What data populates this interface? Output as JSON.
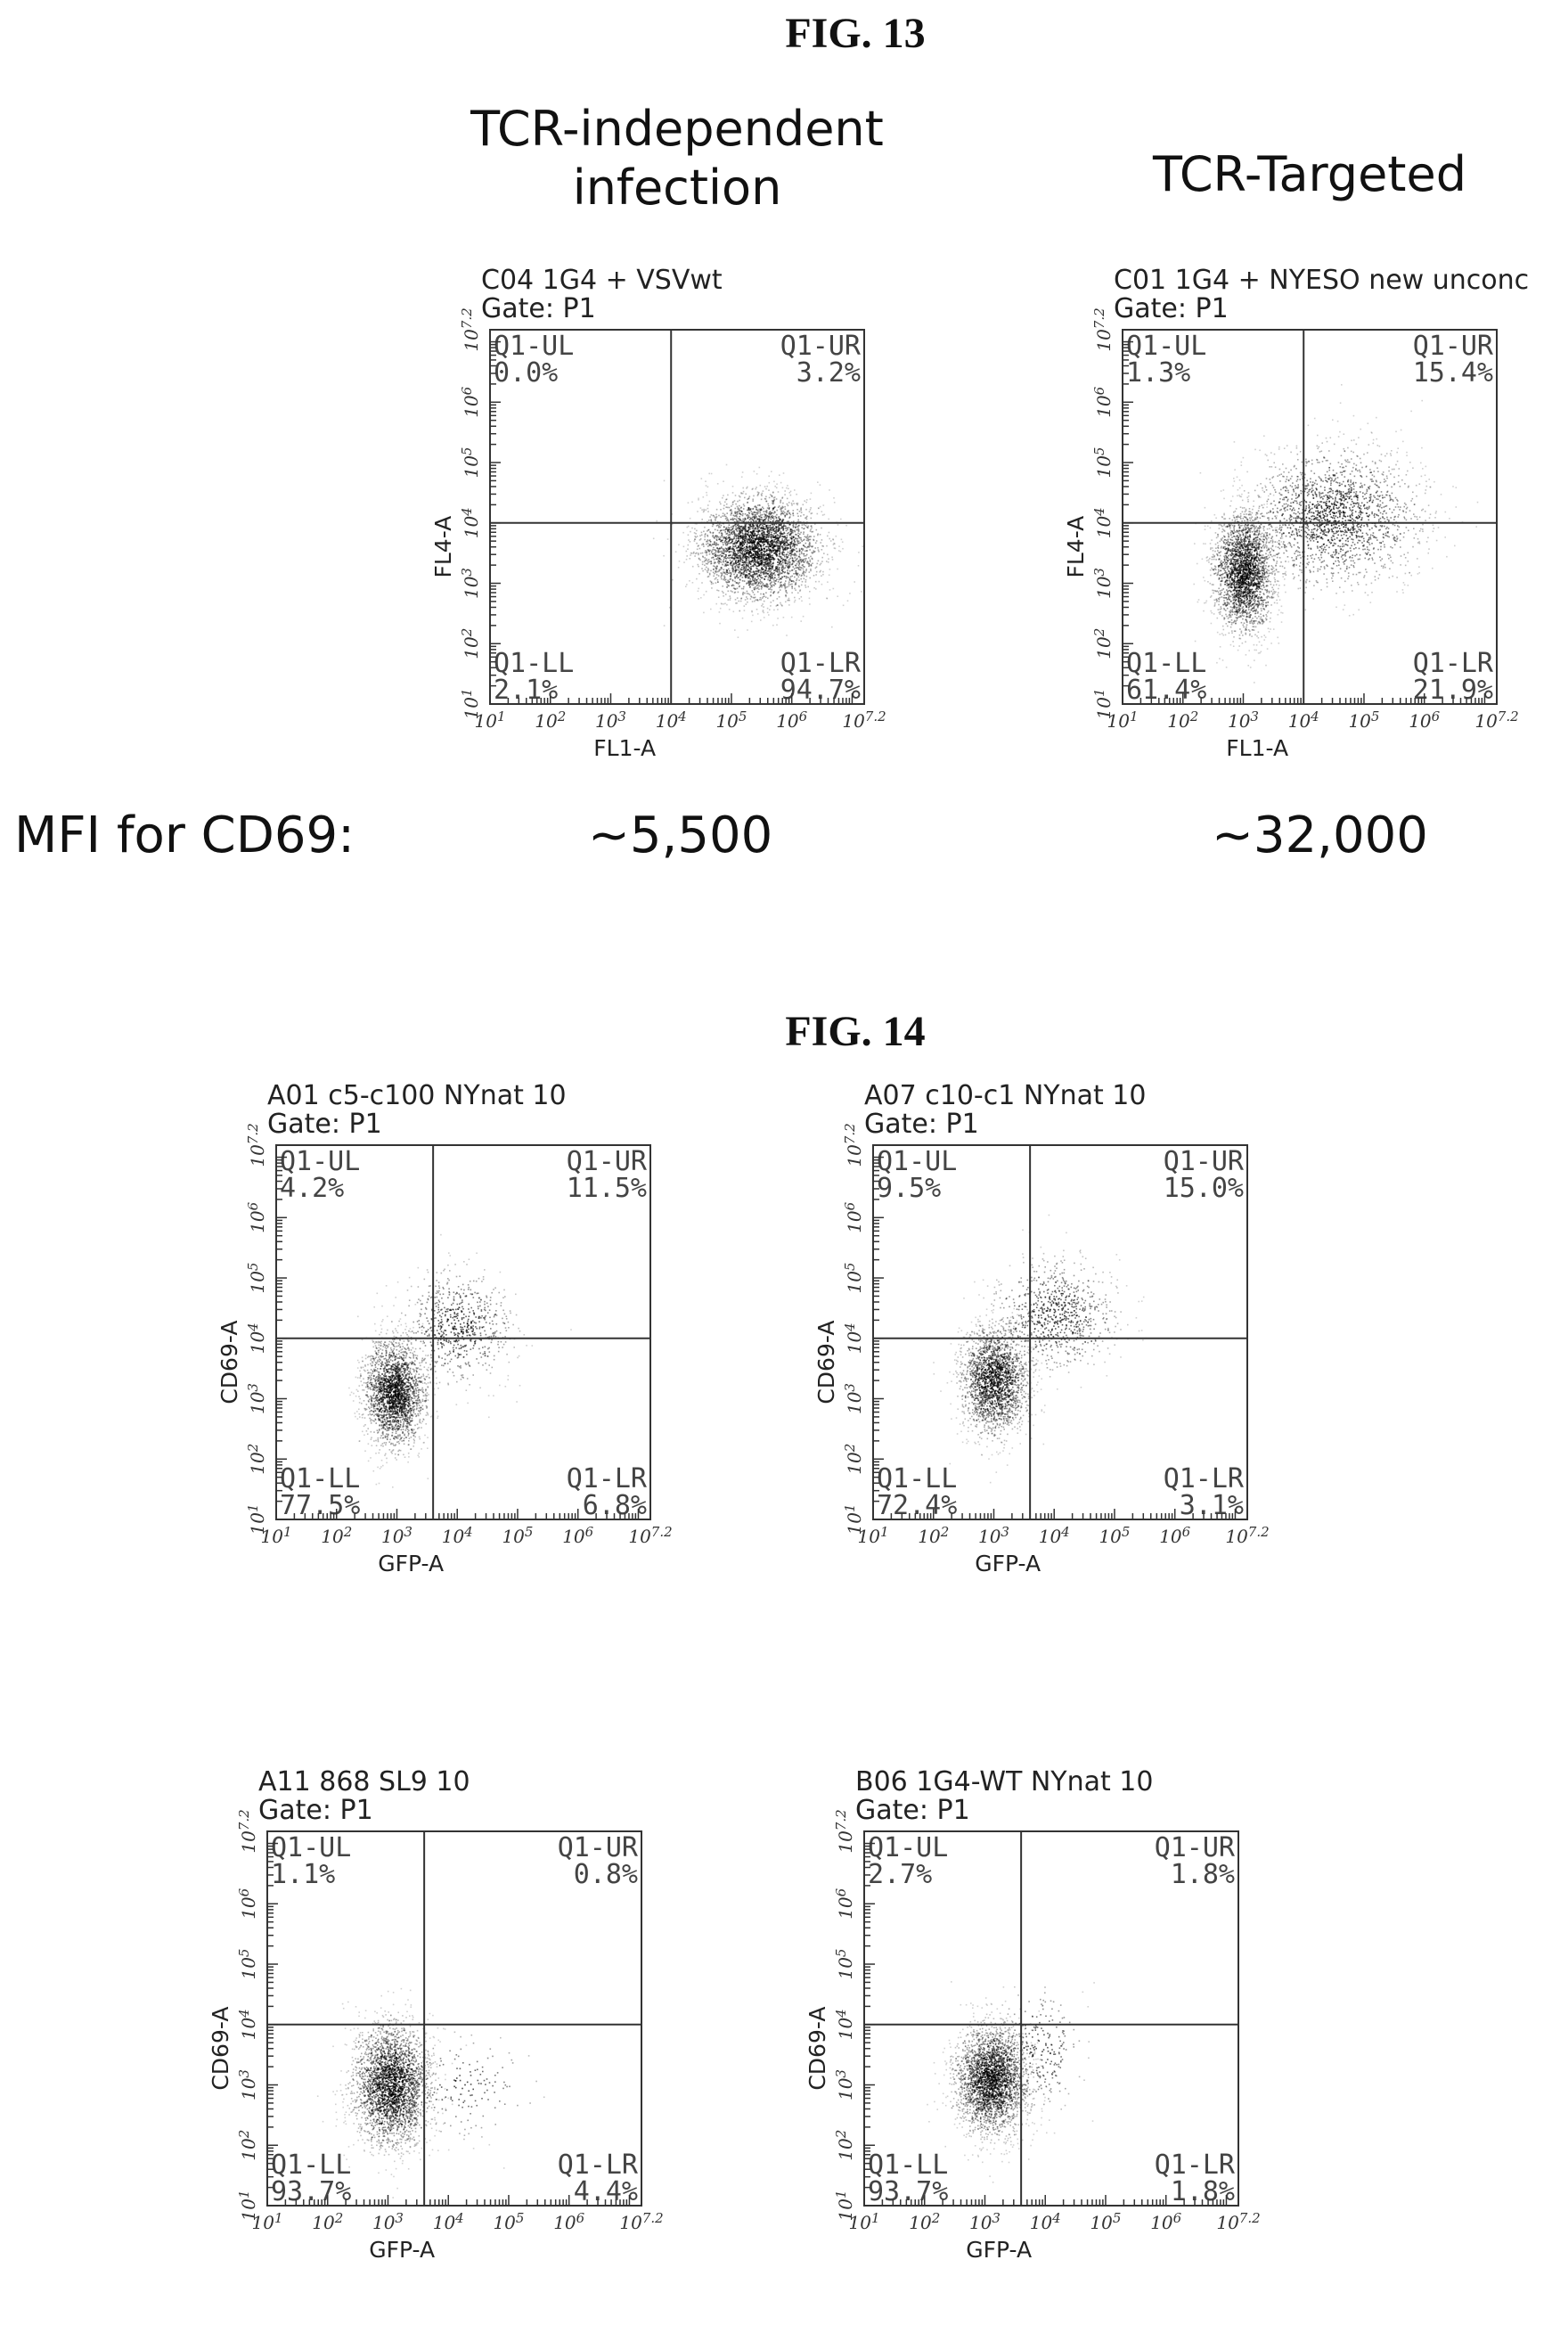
{
  "fig13": {
    "title": "FIG. 13",
    "left_condition": "TCR-independent infection",
    "right_condition": "TCR-Targeted",
    "mfi_label": "MFI for CD69:",
    "mfi_left": "~5,500",
    "mfi_right": "~32,000"
  },
  "fig14": {
    "title": "FIG. 14"
  },
  "chart_data": [
    {
      "type": "scatter",
      "title": "C04 1G4 + VSVwt",
      "subtitle": "Gate: P1",
      "xlabel": "FL1-A",
      "ylabel": "FL4-A",
      "xlim": [
        1,
        7.2
      ],
      "ylim": [
        1,
        7.2
      ],
      "log_scale": true,
      "gate_x": 4,
      "gate_y": 4,
      "x_ticks": [
        "10^1",
        "10^2",
        "10^3",
        "10^4",
        "10^5",
        "10^6",
        "10^7.2"
      ],
      "y_ticks": [
        "10^1",
        "10^2",
        "10^3",
        "10^4",
        "10^5",
        "10^6",
        "10^7.2"
      ],
      "quadrants": {
        "UL": "Q1-UL",
        "UR": "Q1-UR",
        "LL": "Q1-LL",
        "LR": "Q1-LR"
      },
      "percents": {
        "UL": "0.0%",
        "UR": "3.2%",
        "LL": "2.1%",
        "LR": "94.7%"
      },
      "clusters": [
        {
          "cx": 5.45,
          "cy": 3.6,
          "sx": 0.5,
          "sy": 0.42,
          "n": 3500
        }
      ]
    },
    {
      "type": "scatter",
      "title": "C01 1G4 + NYESO new unconc",
      "subtitle": "Gate: P1",
      "xlabel": "FL1-A",
      "ylabel": "FL4-A",
      "xlim": [
        1,
        7.2
      ],
      "ylim": [
        1,
        7.2
      ],
      "log_scale": true,
      "gate_x": 4,
      "gate_y": 4,
      "x_ticks": [
        "10^1",
        "10^2",
        "10^3",
        "10^4",
        "10^5",
        "10^6",
        "10^7.2"
      ],
      "y_ticks": [
        "10^1",
        "10^2",
        "10^3",
        "10^4",
        "10^5",
        "10^6",
        "10^7.2"
      ],
      "quadrants": {
        "UL": "Q1-UL",
        "UR": "Q1-UR",
        "LL": "Q1-LL",
        "LR": "Q1-LR"
      },
      "percents": {
        "UL": "1.3%",
        "UR": "15.4%",
        "LL": "61.4%",
        "LR": "21.9%"
      },
      "clusters": [
        {
          "cx": 3.0,
          "cy": 3.2,
          "sx": 0.25,
          "sy": 0.5,
          "n": 2400
        },
        {
          "cx": 4.5,
          "cy": 4.1,
          "sx": 0.7,
          "sy": 0.55,
          "n": 1900
        }
      ]
    },
    {
      "type": "scatter",
      "title": "A01 c5-c100 NYnat 10",
      "subtitle": "Gate: P1",
      "xlabel": "GFP-A",
      "ylabel": "CD69-A",
      "xlim": [
        1,
        7.2
      ],
      "ylim": [
        1,
        7.2
      ],
      "log_scale": true,
      "gate_x": 3.6,
      "gate_y": 4,
      "x_ticks": [
        "10^1",
        "10^2",
        "10^3",
        "10^4",
        "10^5",
        "10^6",
        "10^7.2"
      ],
      "y_ticks": [
        "10^1",
        "10^2",
        "10^3",
        "10^4",
        "10^5",
        "10^6",
        "10^7.2"
      ],
      "quadrants": {
        "UL": "Q1-UL",
        "UR": "Q1-UR",
        "LL": "Q1-LL",
        "LR": "Q1-LR"
      },
      "percents": {
        "UL": "4.2%",
        "UR": "11.5%",
        "LL": "77.5%",
        "LR": "6.8%"
      },
      "clusters": [
        {
          "cx": 2.95,
          "cy": 3.1,
          "sx": 0.25,
          "sy": 0.45,
          "n": 2200
        },
        {
          "cx": 4.0,
          "cy": 4.2,
          "sx": 0.45,
          "sy": 0.45,
          "n": 700
        }
      ]
    },
    {
      "type": "scatter",
      "title": "A07 c10-c1 NYnat 10",
      "subtitle": "Gate: P1",
      "xlabel": "GFP-A",
      "ylabel": "CD69-A",
      "xlim": [
        1,
        7.2
      ],
      "ylim": [
        1,
        7.2
      ],
      "log_scale": true,
      "gate_x": 3.6,
      "gate_y": 4,
      "x_ticks": [
        "10^1",
        "10^2",
        "10^3",
        "10^4",
        "10^5",
        "10^6",
        "10^7.2"
      ],
      "y_ticks": [
        "10^1",
        "10^2",
        "10^3",
        "10^4",
        "10^5",
        "10^6",
        "10^7.2"
      ],
      "quadrants": {
        "UL": "Q1-UL",
        "UR": "Q1-UR",
        "LL": "Q1-LL",
        "LR": "Q1-LR"
      },
      "percents": {
        "UL": "9.5%",
        "UR": "15.0%",
        "LL": "72.4%",
        "LR": "3.1%"
      },
      "clusters": [
        {
          "cx": 3.0,
          "cy": 3.3,
          "sx": 0.28,
          "sy": 0.45,
          "n": 2000
        },
        {
          "cx": 4.0,
          "cy": 4.4,
          "sx": 0.5,
          "sy": 0.45,
          "n": 800
        }
      ]
    },
    {
      "type": "scatter",
      "title": "A11 868 SL9 10",
      "subtitle": "Gate: P1",
      "xlabel": "GFP-A",
      "ylabel": "CD69-A",
      "xlim": [
        1,
        7.2
      ],
      "ylim": [
        1,
        7.2
      ],
      "log_scale": true,
      "gate_x": 3.6,
      "gate_y": 4,
      "x_ticks": [
        "10^1",
        "10^2",
        "10^3",
        "10^4",
        "10^5",
        "10^6",
        "10^7.2"
      ],
      "y_ticks": [
        "10^1",
        "10^2",
        "10^3",
        "10^4",
        "10^5",
        "10^6",
        "10^7.2"
      ],
      "quadrants": {
        "UL": "Q1-UL",
        "UR": "Q1-UR",
        "LL": "Q1-LL",
        "LR": "Q1-LR"
      },
      "percents": {
        "UL": "1.1%",
        "UR": "0.8%",
        "LL": "93.7%",
        "LR": "4.4%"
      },
      "clusters": [
        {
          "cx": 3.05,
          "cy": 3.0,
          "sx": 0.32,
          "sy": 0.5,
          "n": 2700
        },
        {
          "cx": 4.2,
          "cy": 3.0,
          "sx": 0.6,
          "sy": 0.4,
          "n": 150
        }
      ]
    },
    {
      "type": "scatter",
      "title": "B06 1G4-WT NYnat 10",
      "subtitle": "Gate: P1",
      "xlabel": "GFP-A",
      "ylabel": "CD69-A",
      "xlim": [
        1,
        7.2
      ],
      "ylim": [
        1,
        7.2
      ],
      "log_scale": true,
      "gate_x": 3.6,
      "gate_y": 4,
      "x_ticks": [
        "10^1",
        "10^2",
        "10^3",
        "10^4",
        "10^5",
        "10^6",
        "10^7.2"
      ],
      "y_ticks": [
        "10^1",
        "10^2",
        "10^3",
        "10^4",
        "10^5",
        "10^6",
        "10^7.2"
      ],
      "quadrants": {
        "UL": "Q1-UL",
        "UR": "Q1-UR",
        "LL": "Q1-LL",
        "LR": "Q1-LR"
      },
      "percents": {
        "UL": "2.7%",
        "UR": "1.8%",
        "LL": "93.7%",
        "LR": "1.8%"
      },
      "clusters": [
        {
          "cx": 3.1,
          "cy": 3.1,
          "sx": 0.3,
          "sy": 0.45,
          "n": 2600
        },
        {
          "cx": 3.9,
          "cy": 3.6,
          "sx": 0.35,
          "sy": 0.5,
          "n": 250
        }
      ]
    }
  ]
}
